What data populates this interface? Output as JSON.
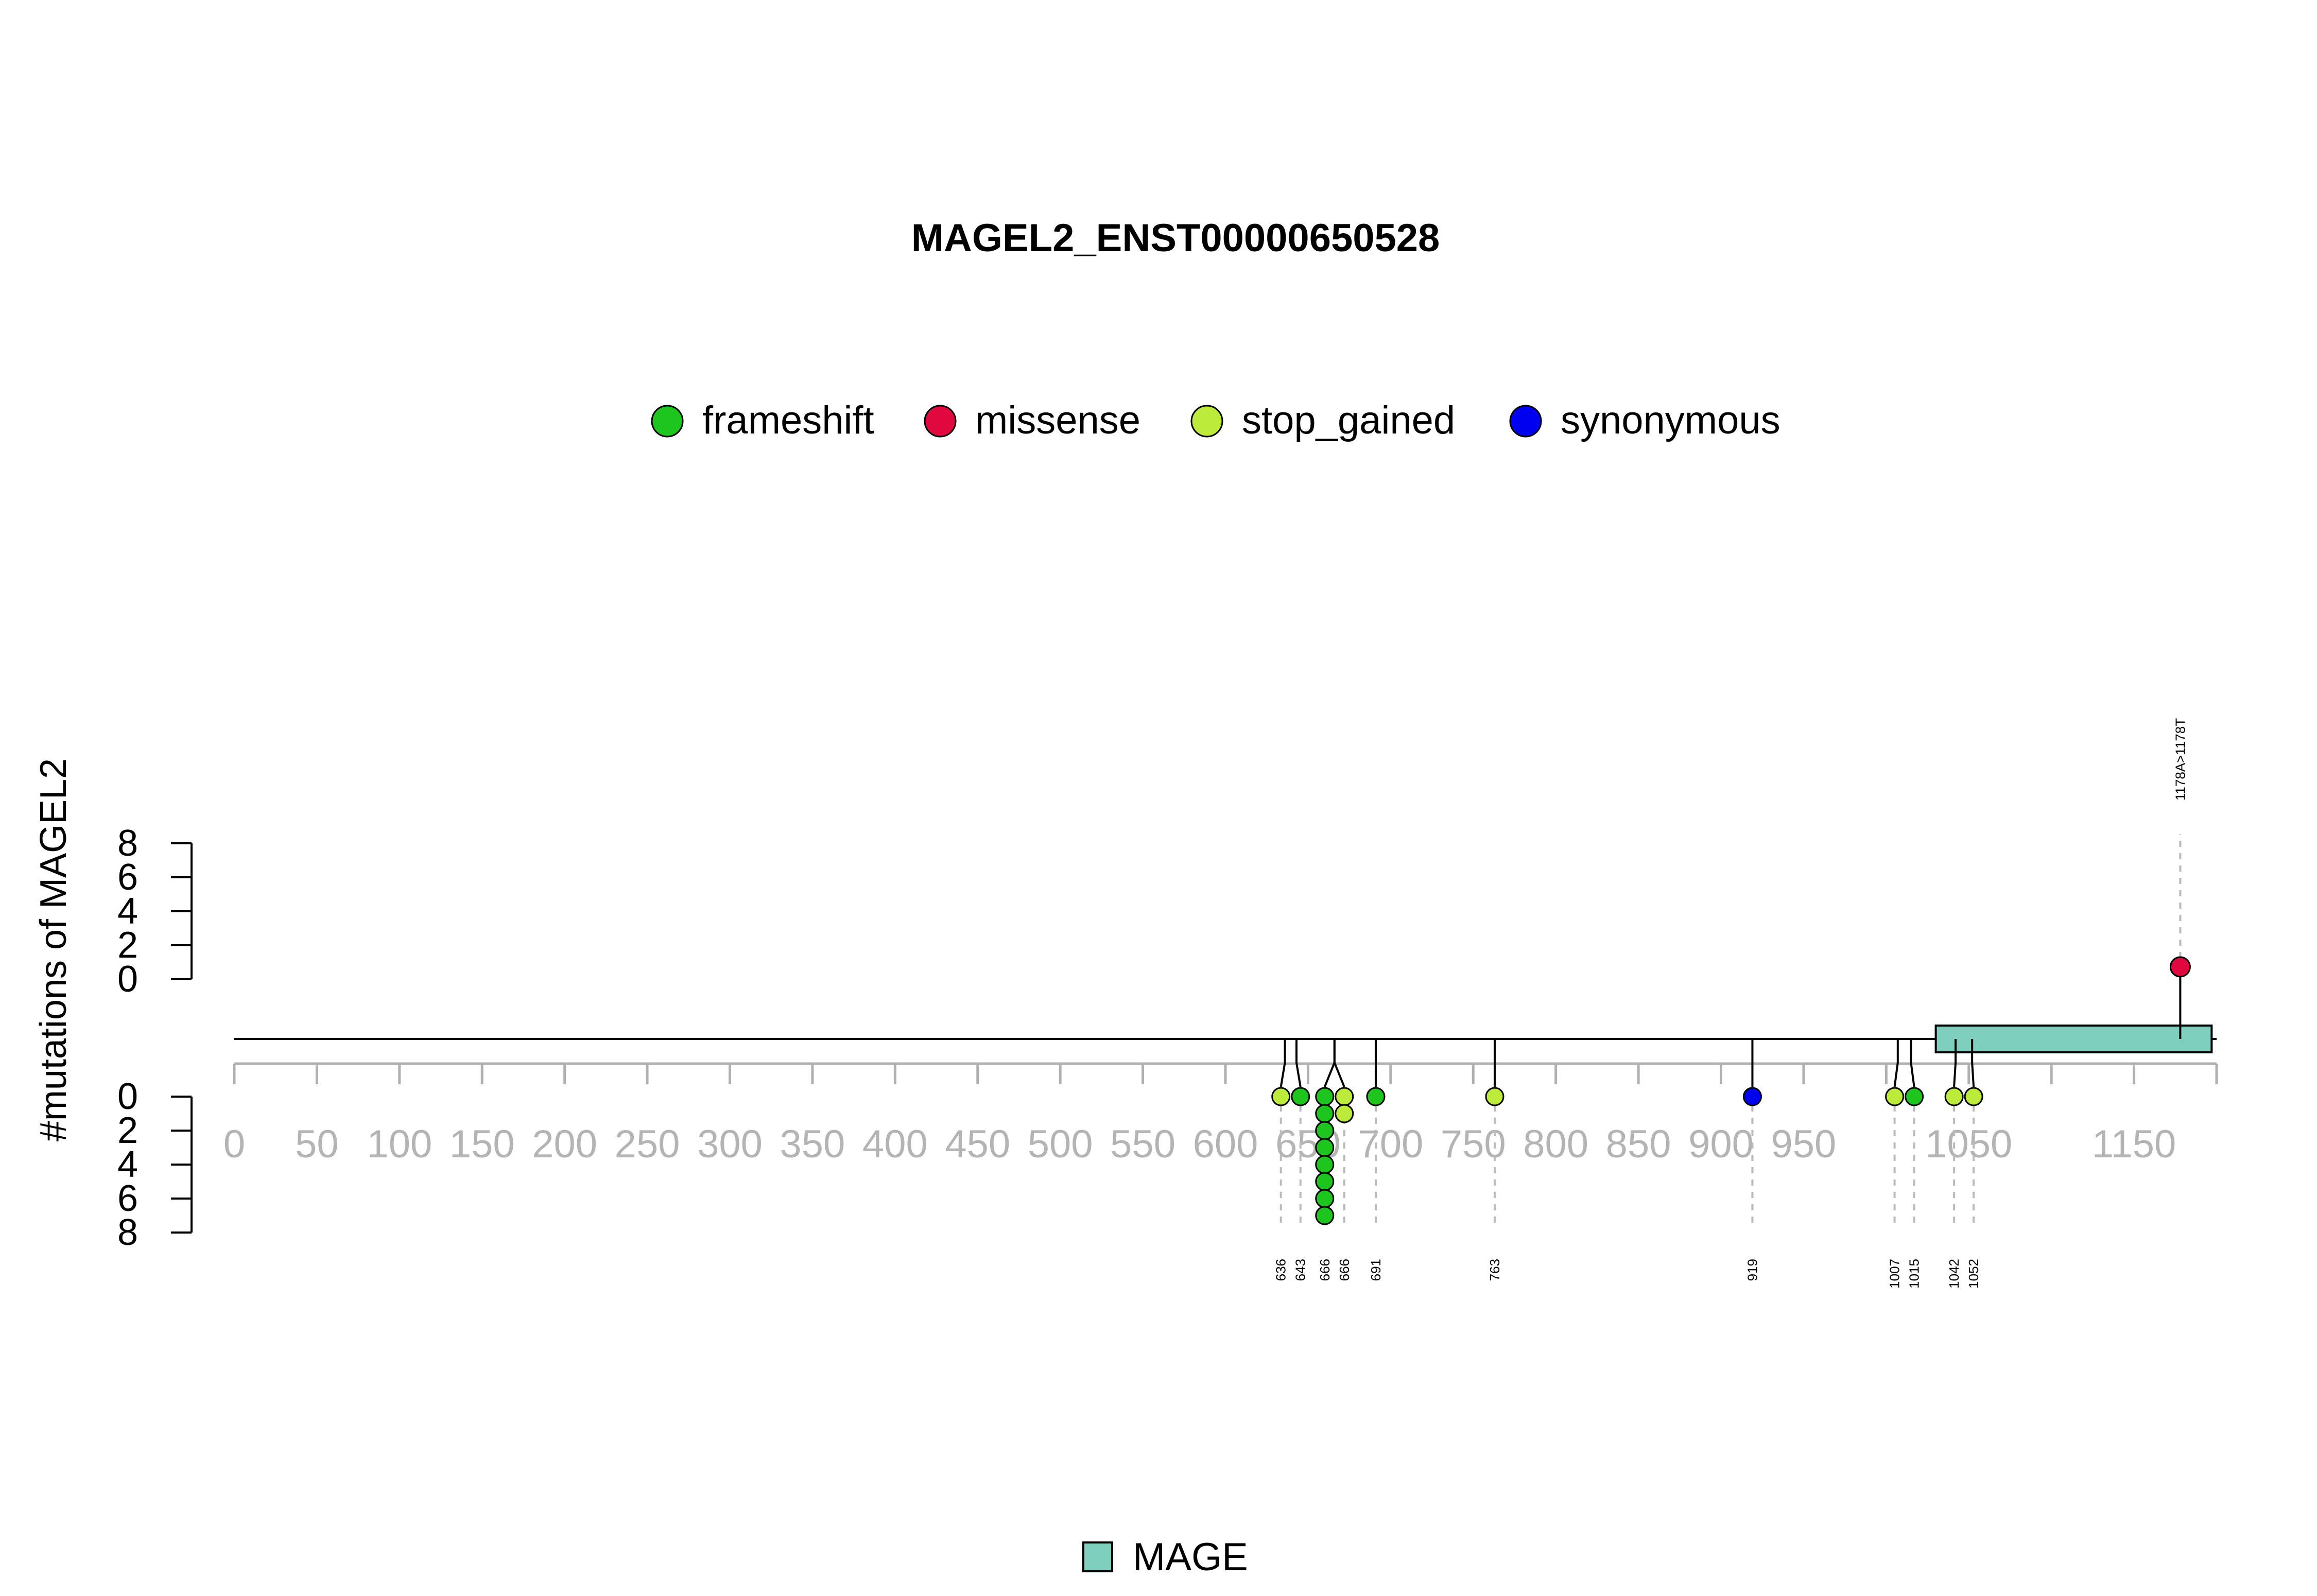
{
  "chart_data": {
    "type": "lollipop",
    "title": "MAGEL2_ENST00000650528",
    "ylabel": "#mutations of MAGEL2",
    "xlim": [
      0,
      1200
    ],
    "x_ticks": [
      0,
      50,
      100,
      150,
      200,
      250,
      300,
      350,
      400,
      450,
      500,
      550,
      600,
      650,
      700,
      750,
      800,
      850,
      900,
      950,
      1050,
      1150
    ],
    "x_tick_labels": [
      "0",
      "50",
      "100",
      "150",
      "200",
      "250",
      "300",
      "350",
      "400",
      "450",
      "500",
      "550",
      "600",
      "650",
      "700",
      "750",
      "800",
      "850",
      "900",
      "950",
      "1050",
      "1150"
    ],
    "y_top_ticks": [
      "0",
      "2",
      "4",
      "6",
      "8"
    ],
    "y_bottom_ticks": [
      "0",
      "2",
      "4",
      "6",
      "8"
    ],
    "legend": [
      {
        "label": "frameshift",
        "color": "#1ec51e"
      },
      {
        "label": "missense",
        "color": "#e0093f"
      },
      {
        "label": "stop_gained",
        "color": "#bdeb3c"
      },
      {
        "label": "synonymous",
        "color": "#0000f0"
      }
    ],
    "domain_legend": [
      {
        "label": "MAGE",
        "color": "#7fcfbf"
      }
    ],
    "domains": [
      {
        "name": "MAGE",
        "start": 1030,
        "end": 1197
      }
    ],
    "top_mutations": [
      {
        "position": 1178,
        "count": 1,
        "type": "missense",
        "label": "1178A>1178T"
      }
    ],
    "bottom_mutations": [
      {
        "position": 636,
        "count": 1,
        "type": "stop_gained",
        "label": "636"
      },
      {
        "position": 643,
        "count": 1,
        "type": "frameshift",
        "label": "643"
      },
      {
        "position": 666,
        "count": 8,
        "type": "frameshift",
        "label": "666"
      },
      {
        "position": 666,
        "count": 2,
        "type": "stop_gained",
        "label": "666"
      },
      {
        "position": 691,
        "count": 1,
        "type": "frameshift",
        "label": "691"
      },
      {
        "position": 763,
        "count": 1,
        "type": "stop_gained",
        "label": "763"
      },
      {
        "position": 919,
        "count": 1,
        "type": "synonymous",
        "label": "919"
      },
      {
        "position": 1007,
        "count": 1,
        "type": "stop_gained",
        "label": "1007"
      },
      {
        "position": 1015,
        "count": 1,
        "type": "frameshift",
        "label": "1015"
      },
      {
        "position": 1042,
        "count": 1,
        "type": "stop_gained",
        "label": "1042"
      },
      {
        "position": 1052,
        "count": 1,
        "type": "stop_gained",
        "label": "1052"
      }
    ]
  }
}
